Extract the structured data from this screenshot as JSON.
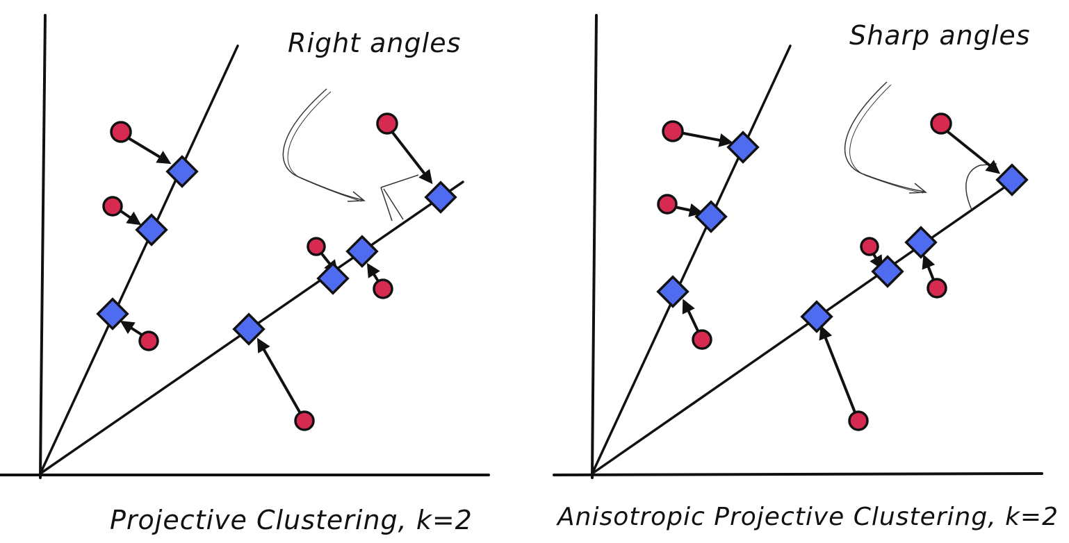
{
  "panels": [
    {
      "caption": "Projective Clustering, k=2",
      "annotation": "Right angles"
    },
    {
      "caption": "Anisotropic Projective Clustering, k=2",
      "annotation": "Sharp angles"
    }
  ],
  "colors": {
    "ink": "#111111",
    "point": "#d62a50",
    "projection": "#4f6cf0"
  },
  "icons": {
    "point": "red-circle",
    "projection": "blue-diamond",
    "arrow": "black-arrow"
  }
}
